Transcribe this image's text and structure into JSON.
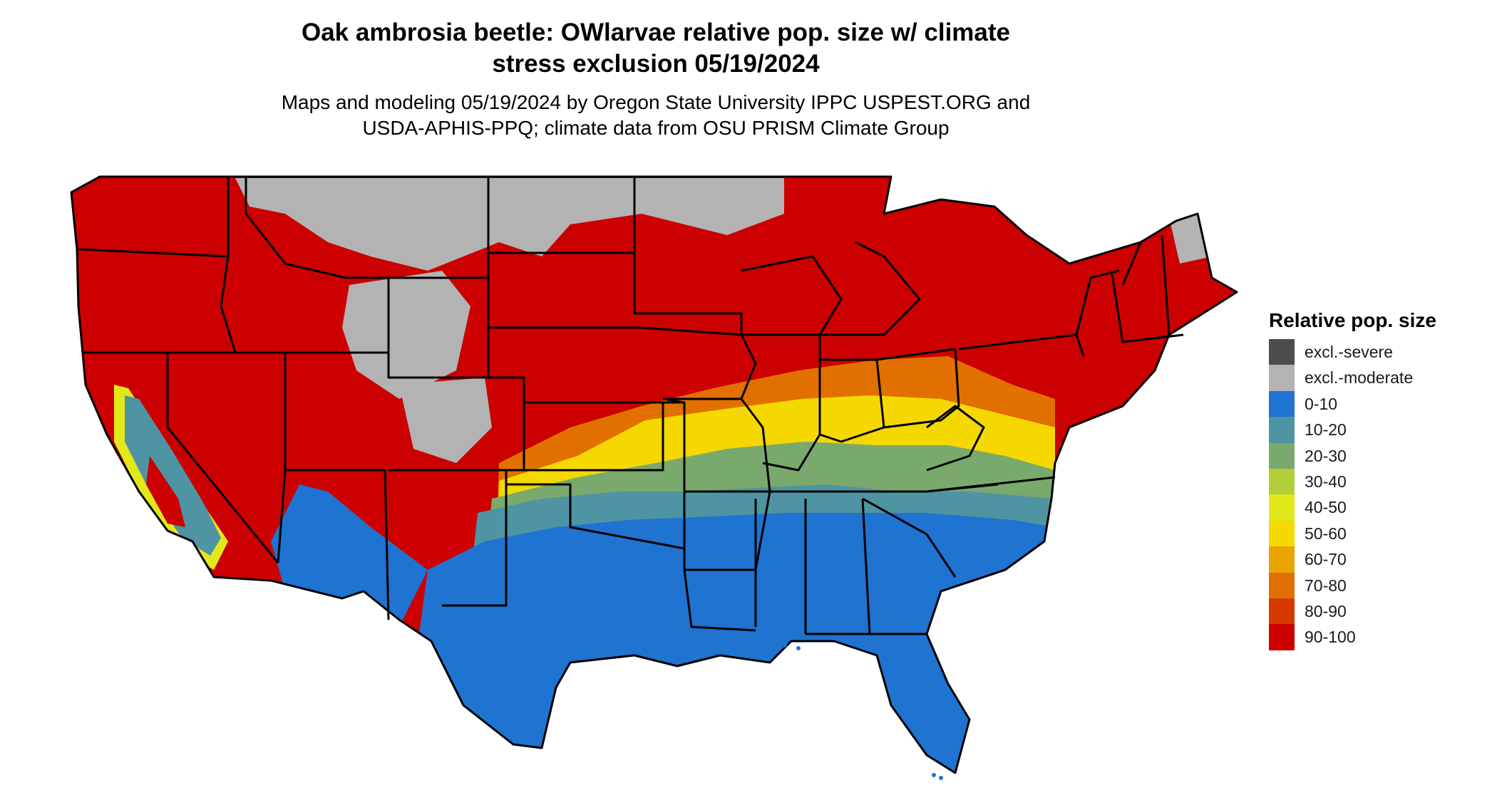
{
  "title": {
    "line1": "Oak ambrosia beetle: OWlarvae relative pop. size w/ climate",
    "line2": "stress exclusion 05/19/2024"
  },
  "subtitle": {
    "line1": "Maps and modeling 05/19/2024 by Oregon State University IPPC USPEST.ORG and",
    "line2": "USDA-APHIS-PPQ; climate data from OSU PRISM Climate Group"
  },
  "legend": {
    "title": "Relative pop. size",
    "items": [
      {
        "label": "excl.-severe",
        "color": "#4d4d4d"
      },
      {
        "label": "excl.-moderate",
        "color": "#b3b3b3"
      },
      {
        "label": "0-10",
        "color": "#1f73d1"
      },
      {
        "label": "10-20",
        "color": "#4e94a3"
      },
      {
        "label": "20-30",
        "color": "#7aa96d"
      },
      {
        "label": "30-40",
        "color": "#b0cf3a"
      },
      {
        "label": "40-50",
        "color": "#e3e81a"
      },
      {
        "label": "50-60",
        "color": "#f5d800"
      },
      {
        "label": "60-70",
        "color": "#eaa400"
      },
      {
        "label": "70-80",
        "color": "#e27000"
      },
      {
        "label": "80-90",
        "color": "#d63a00"
      },
      {
        "label": "90-100",
        "color": "#cc0000"
      }
    ]
  },
  "map": {
    "region": "contiguous-united-states",
    "border_color": "#000000"
  }
}
